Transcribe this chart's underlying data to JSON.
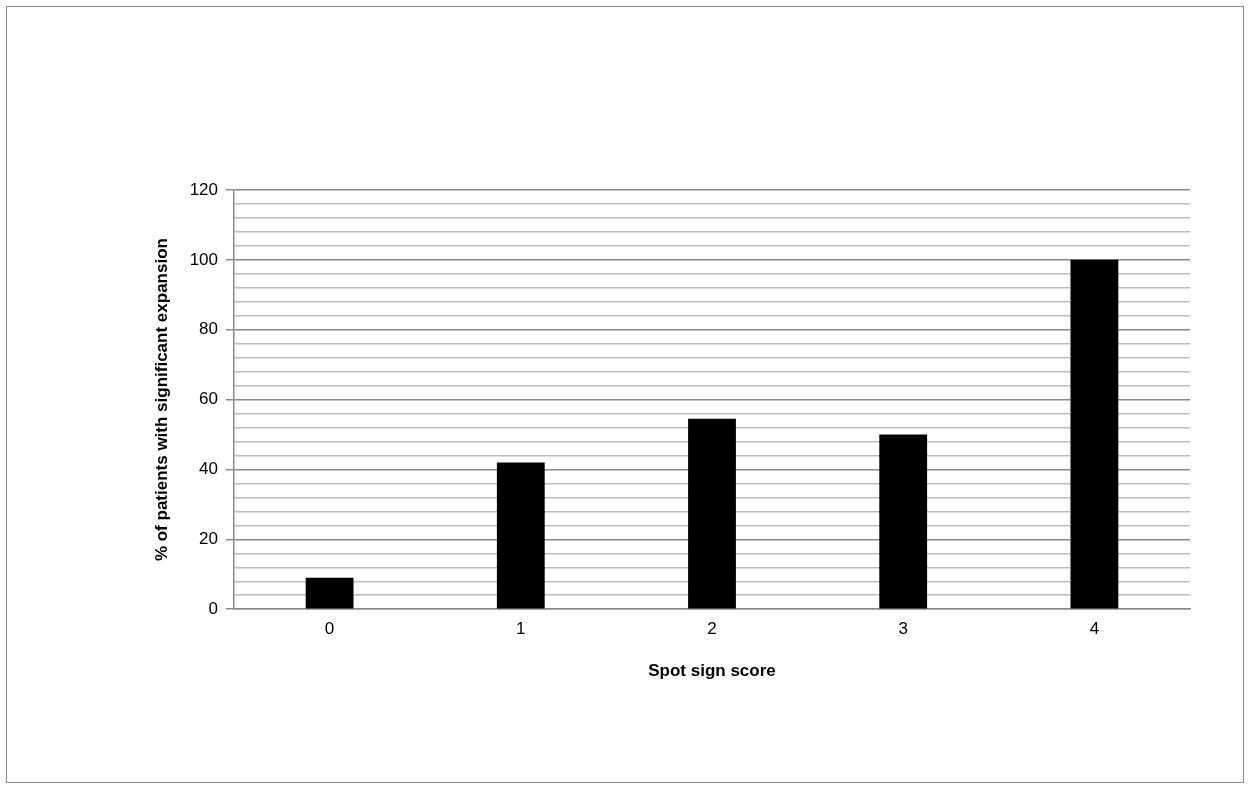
{
  "chart_data": {
    "type": "bar",
    "xlabel": "Spot sign score",
    "ylabel": "% of patients with significant expansion",
    "categories": [
      "0",
      "1",
      "2",
      "3",
      "4"
    ],
    "values": [
      9,
      42,
      54.5,
      50,
      100
    ],
    "color": "#000000",
    "ylim": [
      0,
      120
    ],
    "yticks": [
      0,
      {
        "value": 4,
        "label": null
      },
      {
        "value": 8,
        "label": null
      },
      {
        "value": 12,
        "label": null
      },
      {
        "value": 16,
        "label": null
      },
      20,
      {
        "value": 24,
        "label": null
      },
      {
        "value": 28,
        "label": null
      },
      {
        "value": 32,
        "label": null
      },
      {
        "value": 36,
        "label": null
      },
      40,
      {
        "value": 44,
        "label": null
      },
      {
        "value": 48,
        "label": null
      },
      {
        "value": 52,
        "label": null
      },
      {
        "value": 56,
        "label": null
      },
      60,
      {
        "value": 64,
        "label": null
      },
      {
        "value": 68,
        "label": null
      },
      {
        "value": 72,
        "label": null
      },
      {
        "value": 76,
        "label": null
      },
      80,
      {
        "value": 84,
        "label": null
      },
      {
        "value": 88,
        "label": null
      },
      {
        "value": 92,
        "label": null
      },
      {
        "value": 96,
        "label": null
      },
      100,
      {
        "value": 104,
        "label": null
      },
      {
        "value": 108,
        "label": null
      },
      {
        "value": 112,
        "label": null
      },
      {
        "value": 116,
        "label": null
      },
      120
    ],
    "grid": "y",
    "legend": false
  }
}
